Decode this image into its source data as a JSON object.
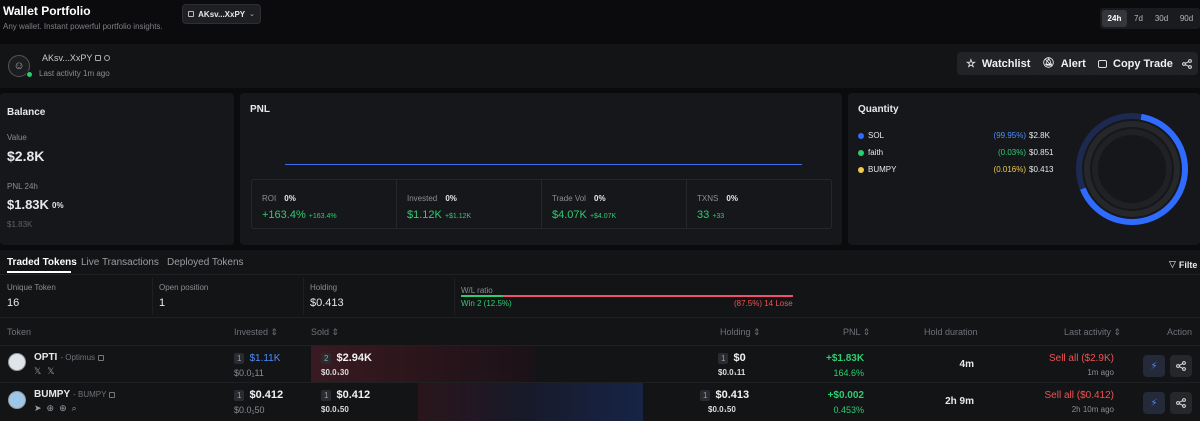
{
  "header": {
    "title": "Wallet Portfolio",
    "subtitle": "Any wallet. Instant powerful portfolio insights.",
    "wallet_selector": "AKsv...XxPY",
    "timeframes": [
      "24h",
      "7d",
      "30d",
      "90d"
    ],
    "active_timeframe": "24h"
  },
  "profile": {
    "address": "AKsv...XxPY",
    "last_activity": "Last activity 1m ago",
    "watchlist_label": "Watchlist",
    "alert_label": "Alert",
    "copy_trade_label": "Copy Trade"
  },
  "balance": {
    "title": "Balance",
    "value_label": "Value",
    "value": "$2.8K",
    "pnl_label": "PNL 24h",
    "pnl_value": "$1.83K",
    "pnl_pct": "0%",
    "pnl_sub": "$1.83K"
  },
  "pnl": {
    "title": "PNL",
    "stats": [
      {
        "label": "ROI",
        "pct": "0%",
        "value": "+163.4%",
        "delta": "+163.4%"
      },
      {
        "label": "Invested",
        "pct": "0%",
        "value": "$1.12K",
        "delta": "+$1.12K"
      },
      {
        "label": "Trade Vol",
        "pct": "0%",
        "value": "$4.07K",
        "delta": "+$4.07K"
      },
      {
        "label": "TXNS",
        "pct": "0%",
        "value": "33",
        "delta": "+33"
      }
    ]
  },
  "quantity": {
    "title": "Quantity",
    "items": [
      {
        "name": "SOL",
        "pct": "(99.95%)",
        "value": "$2.8K",
        "color": "#2f6bff",
        "share": 0.9995
      },
      {
        "name": "faith",
        "pct": "(0.03%)",
        "value": "$0.851",
        "color": "#2ecc71",
        "share": 0.0003
      },
      {
        "name": "BUMPY",
        "pct": "(0.016%)",
        "value": "$0.413",
        "color": "#f2c94c",
        "share": 0.00016
      }
    ]
  },
  "tabs": {
    "items": [
      "Traded Tokens",
      "Live Transactions",
      "Deployed Tokens"
    ],
    "active": "Traded Tokens",
    "filter_label": "Filte"
  },
  "summary": {
    "unique_label": "Unique Token",
    "unique_value": "16",
    "open_label": "Open position",
    "open_value": "1",
    "holding_label": "Holding",
    "holding_value": "$0.413",
    "wl_label": "W/L ratio",
    "win_text": "Win 2 (12.5%)",
    "lose_text": "(87.5%) 14 Lose",
    "win_ratio": 0.125
  },
  "table": {
    "columns": {
      "token": "Token",
      "invested": "Invested",
      "sold": "Sold",
      "holding": "Holding",
      "pnl": "PNL",
      "hold_duration": "Hold duration",
      "last_activity": "Last activity",
      "action": "Action"
    },
    "rows": [
      {
        "symbol": "OPTI",
        "name": "- Optimus",
        "invested_count": "1",
        "invested": "$1.11K",
        "invested_sub": "$0.0₁11",
        "sold_count": "2",
        "sold": "$2.94K",
        "sold_sub": "$0.0₁30",
        "holding_count": "1",
        "holding": "$0",
        "holding_sub": "$0.0₁11",
        "pnl": "+$1.83K",
        "pnl_pct": "164.6%",
        "duration": "4m",
        "activity": "Sell all ($2.9K)",
        "activity_time": "1m ago"
      },
      {
        "symbol": "BUMPY",
        "name": "- BUMPY",
        "invested_count": "1",
        "invested": "$0.412",
        "invested_sub": "$0.0₁50",
        "sold_count": "1",
        "sold": "$0.412",
        "sold_sub": "$0.0₁50",
        "holding_count": "1",
        "holding": "$0.413",
        "holding_sub": "$0.0₁50",
        "pnl": "+$0.002",
        "pnl_pct": "0.453%",
        "duration": "2h 9m",
        "activity": "Sell all ($0.412)",
        "activity_time": "2h 10m ago"
      }
    ]
  }
}
